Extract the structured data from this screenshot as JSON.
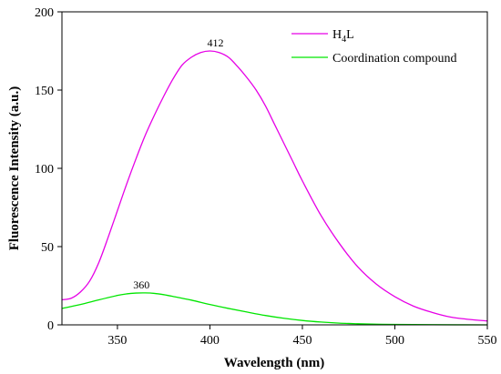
{
  "chart_data": {
    "type": "line",
    "xlabel": "Wavelength (nm)",
    "ylabel": "Fluorescence Intensity (a.u.)",
    "xlim": [
      320,
      550
    ],
    "ylim": [
      0,
      200
    ],
    "x_ticks": [
      350,
      400,
      450,
      500,
      550
    ],
    "y_ticks": [
      0,
      50,
      100,
      150,
      200
    ],
    "grid": false,
    "legend_position": "top-right",
    "series": [
      {
        "name": "H4L",
        "legend_main": "H",
        "legend_sub": "4",
        "legend_tail": "L",
        "color": "#e600e6",
        "x": [
          320,
          325,
          330,
          335,
          340,
          345,
          350,
          355,
          360,
          365,
          370,
          375,
          380,
          385,
          390,
          395,
          400,
          405,
          410,
          415,
          420,
          425,
          430,
          435,
          440,
          445,
          450,
          460,
          470,
          480,
          490,
          500,
          510,
          520,
          530,
          540,
          550
        ],
        "y": [
          16,
          17,
          21,
          28,
          40,
          56,
          73,
          90,
          106,
          121,
          134,
          146,
          157,
          166,
          171,
          174,
          175,
          174,
          171,
          165,
          158,
          150,
          140,
          128,
          116,
          104,
          92,
          70,
          52,
          37,
          26,
          18,
          12,
          8,
          5,
          3.5,
          2.5
        ]
      },
      {
        "name": "Coordination compound",
        "color": "#00e600",
        "x": [
          320,
          330,
          340,
          350,
          355,
          360,
          365,
          370,
          375,
          380,
          390,
          400,
          410,
          420,
          430,
          440,
          450,
          460,
          470,
          480,
          490,
          500,
          520,
          550
        ],
        "y": [
          10.5,
          13,
          16,
          18.8,
          19.8,
          20.3,
          20.4,
          20.1,
          19.3,
          18.2,
          15.8,
          13,
          10.5,
          8.2,
          6,
          4.2,
          2.8,
          1.8,
          1.1,
          0.7,
          0.4,
          0.3,
          0.1,
          0
        ]
      }
    ],
    "annotations": [
      {
        "text": "412",
        "x": 403,
        "y": 175
      },
      {
        "text": "360",
        "x": 363,
        "y": 20.4
      }
    ]
  }
}
